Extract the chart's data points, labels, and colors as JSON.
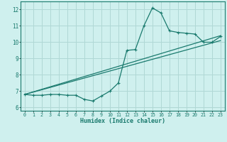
{
  "title": "",
  "xlabel": "Humidex (Indice chaleur)",
  "xlim": [
    -0.5,
    23.5
  ],
  "ylim": [
    5.8,
    12.5
  ],
  "xticks": [
    0,
    1,
    2,
    3,
    4,
    5,
    6,
    7,
    8,
    9,
    10,
    11,
    12,
    13,
    14,
    15,
    16,
    17,
    18,
    19,
    20,
    21,
    22,
    23
  ],
  "yticks": [
    6,
    7,
    8,
    9,
    10,
    11,
    12
  ],
  "bg_color": "#cff0ee",
  "grid_color": "#b0d8d5",
  "line_color": "#1a7a6e",
  "jagged_x": [
    0,
    1,
    2,
    3,
    4,
    5,
    6,
    7,
    8,
    9,
    10,
    11,
    12,
    13,
    14,
    15,
    16,
    17,
    18,
    19,
    20,
    21,
    22,
    23
  ],
  "jagged_y": [
    6.8,
    6.75,
    6.75,
    6.8,
    6.8,
    6.75,
    6.75,
    6.5,
    6.4,
    6.7,
    7.0,
    7.5,
    9.5,
    9.55,
    11.0,
    12.1,
    11.8,
    10.7,
    10.6,
    10.55,
    10.5,
    10.0,
    10.0,
    10.35
  ],
  "line2_x": [
    0,
    23
  ],
  "line2_y": [
    6.8,
    10.35
  ],
  "line3_x": [
    0,
    23
  ],
  "line3_y": [
    6.8,
    10.35
  ]
}
